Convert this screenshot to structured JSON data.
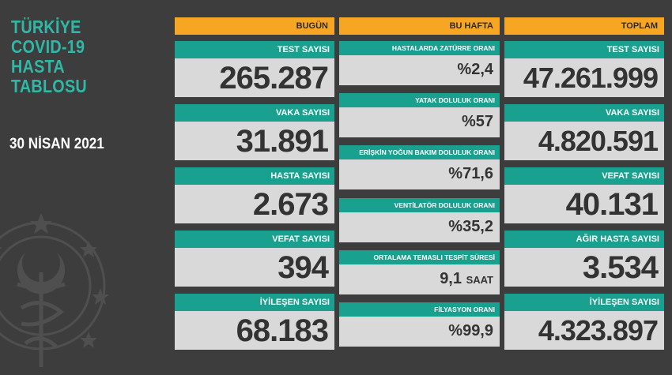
{
  "title_lines": [
    "TÜRKİYE",
    "COVID-19",
    "HASTA",
    "TABLOSU"
  ],
  "date": "30 NİSAN 2021",
  "bugun": {
    "header": "BUGÜN",
    "cards": [
      {
        "label": "TEST SAYISI",
        "value": "265.287"
      },
      {
        "label": "VAKA SAYISI",
        "value": "31.891"
      },
      {
        "label": "HASTA SAYISI",
        "value": "2.673"
      },
      {
        "label": "VEFAT SAYISI",
        "value": "394"
      },
      {
        "label": "İYİLEŞEN SAYISI",
        "value": "68.183"
      }
    ]
  },
  "bu_hafta": {
    "header": "BU HAFTA",
    "cards": [
      {
        "label": "HASTALARDA ZATÜRRE ORANI",
        "value": "%2,4"
      },
      {
        "label": "YATAK DOLULUK ORANI",
        "value": "%57"
      },
      {
        "label": "ERİŞKİN YOĞUN BAKIM DOLULUK ORANI",
        "value": "%71,6"
      },
      {
        "label": "VENTİLATÖR DOLULUK ORANI",
        "value": "%35,2"
      },
      {
        "label": "ORTALAMA TEMASLI TESPİT SÜRESİ",
        "value": "9,1",
        "unit": "SAAT"
      },
      {
        "label": "FİLYASYON ORANI",
        "value": "%99,9"
      }
    ]
  },
  "toplam": {
    "header": "TOPLAM",
    "cards": [
      {
        "label": "TEST SAYISI",
        "value": "47.261.999"
      },
      {
        "label": "VAKA SAYISI",
        "value": "4.820.591"
      },
      {
        "label": "VEFAT SAYISI",
        "value": "40.131"
      },
      {
        "label": "AĞIR HASTA SAYISI",
        "value": "3.534"
      },
      {
        "label": "İYİLEŞEN SAYISI",
        "value": "4.323.897"
      }
    ]
  },
  "colors": {
    "background": "#3d3d3d",
    "title_teal": "#2fb8a6",
    "header_orange": "#f6a623",
    "label_teal": "#19a08f",
    "card_gray": "#d9d9d9",
    "value_text": "#333333"
  },
  "icons": {
    "emblem": "ministry-of-health-emblem-icon"
  }
}
